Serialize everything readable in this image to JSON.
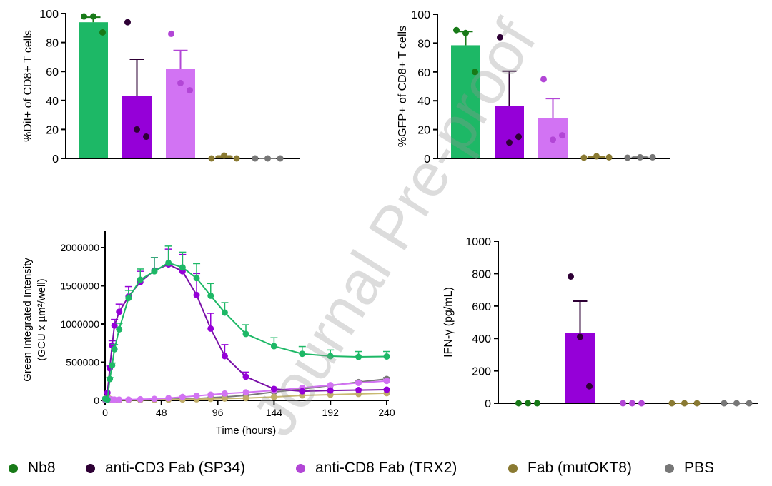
{
  "watermark": "Journal Pre-proof",
  "groups": [
    {
      "name": "Nb8",
      "bar": "#1db866",
      "dot": "#187a18"
    },
    {
      "name": "anti-CD3 Fab (SP34)",
      "bar": "#9500d8",
      "dot": "#2e0035"
    },
    {
      "name": "anti-CD8 Fab (TRX2)",
      "bar": "#d273f3",
      "dot": "#b246d6"
    },
    {
      "name": "Fab (mutOKT8)",
      "bar": "#8a7a32",
      "dot": "#8a7a32"
    },
    {
      "name": "PBS",
      "bar": "#777777",
      "dot": "#777777"
    }
  ],
  "chart_data": [
    {
      "type": "bar",
      "ylabel": "%DiI+ of CD8+ T cells",
      "ylim": [
        0,
        100
      ],
      "yticks": [
        "0",
        "20",
        "40",
        "60",
        "80",
        "100"
      ],
      "categories": [
        "Nb8",
        "anti-CD3 Fab (SP34)",
        "anti-CD8 Fab (TRX2)",
        "Fab (mutOKT8)",
        "PBS"
      ],
      "means": [
        94,
        43,
        62,
        1,
        0
      ],
      "sem": [
        3.5,
        25.5,
        12.5,
        0.7,
        0
      ],
      "points": [
        [
          98,
          98,
          87
        ],
        [
          94,
          20,
          15
        ],
        [
          86,
          52,
          47
        ],
        [
          0,
          2,
          0
        ],
        [
          0,
          0,
          0
        ]
      ]
    },
    {
      "type": "bar",
      "ylabel": "%GFP+ of CD8+ T cells",
      "ylim": [
        0,
        100
      ],
      "yticks": [
        "0",
        "20",
        "40",
        "60",
        "80",
        "100"
      ],
      "categories": [
        "Nb8",
        "anti-CD3 Fab (SP34)",
        "anti-CD8 Fab (TRX2)",
        "Fab (mutOKT8)",
        "PBS"
      ],
      "means": [
        78.5,
        36.5,
        28,
        1,
        0.7
      ],
      "sem": [
        9.5,
        24,
        13.5,
        0.5,
        0.2
      ],
      "points": [
        [
          89,
          87,
          60
        ],
        [
          84,
          11,
          15
        ],
        [
          55,
          13,
          16
        ],
        [
          0.5,
          1.5,
          0.8
        ],
        [
          0.5,
          0.8,
          0.8
        ]
      ]
    },
    {
      "type": "line",
      "ylabel": "Green Integrated Intensity",
      "ylabel2": "(GCU x µm²/well)",
      "xlabel": "Time (hours)",
      "xlim": [
        0,
        240
      ],
      "ylim": [
        0,
        2000000
      ],
      "xticks": [
        "0",
        "48",
        "96",
        "144",
        "192",
        "240"
      ],
      "yticks": [
        "0",
        "500000",
        "1000000",
        "1500000",
        "2000000"
      ],
      "x": [
        0,
        2,
        4,
        6,
        8,
        12,
        20,
        30,
        42,
        54,
        66,
        78,
        90,
        102,
        120,
        144,
        168,
        192,
        216,
        240
      ],
      "series": [
        {
          "name": "Nb8",
          "values": [
            20000,
            10000,
            280000,
            460000,
            670000,
            930000,
            1340000,
            1580000,
            1690000,
            1800000,
            1740000,
            1600000,
            1370000,
            1150000,
            870000,
            710000,
            610000,
            580000,
            570000,
            575000
          ],
          "err": [
            0,
            0,
            20000,
            30000,
            60000,
            80000,
            100000,
            140000,
            180000,
            220000,
            200000,
            190000,
            160000,
            130000,
            120000,
            110000,
            95000,
            80000,
            70000,
            65000
          ]
        },
        {
          "name": "anti-CD3 Fab (SP34)",
          "values": [
            20000,
            100000,
            420000,
            720000,
            980000,
            1160000,
            1360000,
            1550000,
            1700000,
            1780000,
            1690000,
            1380000,
            940000,
            580000,
            310000,
            150000,
            120000,
            130000,
            135000,
            140000
          ],
          "err": [
            0,
            0,
            30000,
            60000,
            80000,
            100000,
            130000,
            140000,
            170000,
            200000,
            220000,
            280000,
            200000,
            150000,
            60000,
            0,
            0,
            0,
            0,
            0
          ]
        },
        {
          "name": "anti-CD8 Fab (TRX2)",
          "values": [
            10000,
            12000,
            15000,
            12000,
            10000,
            10000,
            10000,
            15000,
            20000,
            30000,
            45000,
            60000,
            75000,
            90000,
            105000,
            130000,
            165000,
            200000,
            230000,
            255000
          ],
          "err": [
            0,
            0,
            0,
            0,
            0,
            0,
            0,
            0,
            0,
            0,
            0,
            0,
            0,
            0,
            0,
            0,
            0,
            0,
            15000,
            20000
          ]
        },
        {
          "name": "Fab (mutOKT8)",
          "values": [
            10000,
            50000,
            20000,
            8000,
            5000,
            5000,
            5000,
            5000,
            8000,
            10000,
            12000,
            15000,
            20000,
            25000,
            30000,
            45000,
            65000,
            75000,
            85000,
            95000
          ],
          "err": [
            0,
            0,
            0,
            0,
            0,
            0,
            0,
            0,
            0,
            0,
            0,
            0,
            0,
            0,
            0,
            0,
            0,
            0,
            0,
            0
          ]
        },
        {
          "name": "PBS",
          "values": [
            5000,
            5000,
            5000,
            5000,
            5000,
            5000,
            5000,
            8000,
            10000,
            15000,
            20000,
            25000,
            35000,
            45000,
            65000,
            110000,
            150000,
            195000,
            240000,
            280000
          ],
          "err": [
            0,
            0,
            0,
            0,
            0,
            0,
            0,
            0,
            0,
            0,
            0,
            0,
            0,
            0,
            0,
            0,
            0,
            0,
            10000,
            20000
          ]
        }
      ]
    },
    {
      "type": "bar",
      "ylabel": "IFN-γ (pg/mL)",
      "ylim": [
        0,
        1000
      ],
      "yticks": [
        "0",
        "200",
        "400",
        "600",
        "800",
        "1000"
      ],
      "categories": [
        "Nb8",
        "anti-CD3 Fab (SP34)",
        "anti-CD8 Fab (TRX2)",
        "Fab (mutOKT8)",
        "PBS"
      ],
      "means": [
        0,
        432,
        0,
        0,
        0
      ],
      "sem": [
        0,
        198,
        0,
        0,
        0
      ],
      "points": [
        [
          0,
          0,
          0
        ],
        [
          782,
          410,
          105
        ],
        [
          0,
          0,
          0
        ],
        [
          0,
          0,
          0
        ],
        [
          0,
          0,
          0
        ]
      ]
    }
  ]
}
